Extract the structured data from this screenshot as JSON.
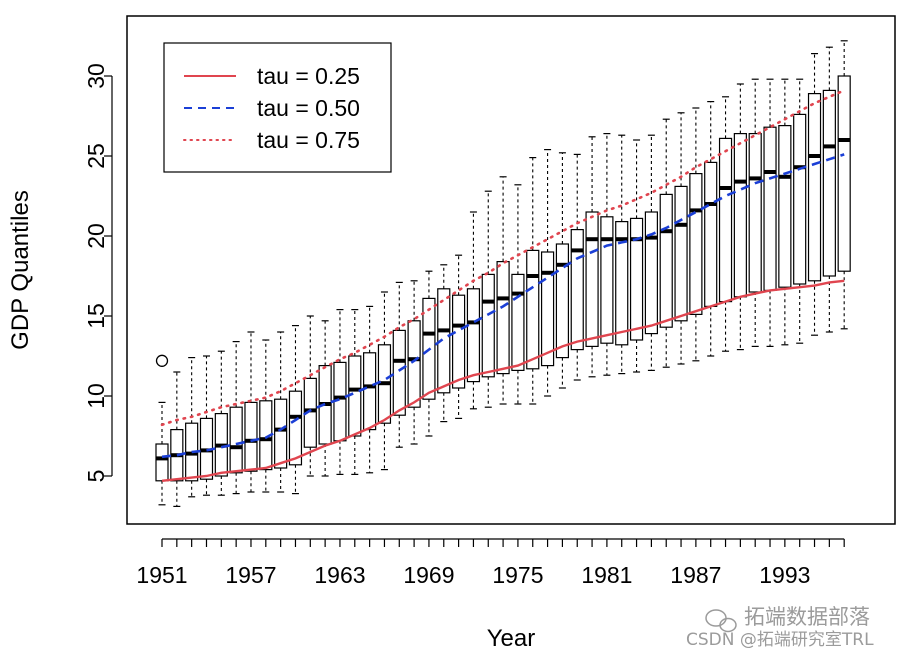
{
  "chart_data": {
    "type": "boxplot",
    "xlabel": "Year",
    "ylabel": "GDP Quantiles",
    "ylim": [
      2,
      33
    ],
    "yticks": [
      5,
      10,
      15,
      20,
      25,
      30
    ],
    "xtick_labels": [
      "1951",
      "1957",
      "1963",
      "1969",
      "1975",
      "1981",
      "1987",
      "1993"
    ],
    "years": [
      1951,
      1952,
      1953,
      1954,
      1955,
      1956,
      1957,
      1958,
      1959,
      1960,
      1961,
      1962,
      1963,
      1964,
      1965,
      1966,
      1967,
      1968,
      1969,
      1970,
      1971,
      1972,
      1973,
      1974,
      1975,
      1976,
      1977,
      1978,
      1979,
      1980,
      1981,
      1982,
      1983,
      1984,
      1985,
      1986,
      1987,
      1988,
      1989,
      1990,
      1991,
      1992,
      1993,
      1994,
      1995,
      1996,
      1997
    ],
    "boxes": {
      "wlo": [
        3.2,
        3.1,
        3.7,
        3.8,
        3.8,
        3.9,
        4.0,
        4.0,
        4.0,
        3.9,
        5.0,
        5.0,
        5.1,
        5.1,
        5.2,
        5.4,
        6.8,
        7.0,
        7.5,
        8.4,
        8.6,
        9.2,
        9.3,
        9.5,
        9.5,
        9.5,
        10.0,
        10.5,
        11.0,
        11.2,
        11.3,
        11.4,
        11.5,
        11.6,
        11.8,
        12.0,
        12.2,
        12.5,
        12.8,
        12.9,
        13.1,
        13.1,
        13.2,
        13.3,
        13.8,
        14.0,
        14.2
      ],
      "q1": [
        4.7,
        4.7,
        4.7,
        4.8,
        5.0,
        5.2,
        5.3,
        5.4,
        5.5,
        5.7,
        6.8,
        7.0,
        7.2,
        7.5,
        7.9,
        8.3,
        8.8,
        9.3,
        9.8,
        10.2,
        10.5,
        10.9,
        11.2,
        11.4,
        11.6,
        11.7,
        11.9,
        12.4,
        12.9,
        13.1,
        13.3,
        13.2,
        13.5,
        13.9,
        14.3,
        14.7,
        15.1,
        15.6,
        15.9,
        16.2,
        16.5,
        16.6,
        16.8,
        17.0,
        17.2,
        17.5,
        17.8
      ],
      "med": [
        6.1,
        6.3,
        6.4,
        6.6,
        6.9,
        6.8,
        7.2,
        7.3,
        7.9,
        8.7,
        9.1,
        9.5,
        9.9,
        10.4,
        10.6,
        10.8,
        12.2,
        12.3,
        13.9,
        14.1,
        14.4,
        14.6,
        15.9,
        16.1,
        16.4,
        17.5,
        17.7,
        18.2,
        19.1,
        19.8,
        19.8,
        19.8,
        19.8,
        19.9,
        20.3,
        20.7,
        21.6,
        22.0,
        23.0,
        23.4,
        23.6,
        24.0,
        23.7,
        24.3,
        25.0,
        25.6,
        26.0
      ],
      "q3": [
        7.0,
        7.9,
        8.3,
        8.6,
        8.9,
        9.3,
        9.6,
        9.7,
        9.8,
        10.3,
        11.1,
        11.9,
        12.1,
        12.5,
        12.7,
        13.2,
        14.1,
        14.7,
        16.1,
        16.7,
        16.3,
        16.7,
        17.6,
        18.4,
        17.6,
        19.1,
        19.0,
        19.5,
        20.4,
        21.5,
        21.2,
        20.9,
        21.1,
        21.5,
        22.6,
        23.1,
        23.9,
        24.6,
        26.1,
        26.4,
        26.4,
        26.8,
        26.9,
        27.6,
        28.9,
        29.1,
        30.0
      ],
      "whi": [
        9.6,
        11.5,
        12.4,
        12.5,
        12.8,
        13.4,
        14.0,
        13.5,
        14.0,
        14.4,
        15.0,
        14.7,
        15.4,
        15.4,
        15.6,
        16.5,
        17.1,
        17.2,
        17.8,
        18.2,
        18.8,
        21.5,
        22.8,
        23.7,
        23.2,
        24.9,
        25.4,
        25.2,
        25.1,
        26.2,
        26.4,
        26.3,
        26.0,
        26.3,
        27.3,
        27.7,
        28.0,
        28.4,
        28.7,
        29.5,
        29.8,
        29.8,
        29.8,
        29.8,
        31.4,
        31.8,
        32.2
      ],
      "outliers": [
        [
          1951,
          12.2
        ]
      ]
    },
    "series": [
      {
        "name": "tau = 0.25",
        "color": "#e0454f",
        "style": "solid",
        "values": [
          4.7,
          4.8,
          4.9,
          5.0,
          5.2,
          5.3,
          5.4,
          5.5,
          5.8,
          6.1,
          6.5,
          6.9,
          7.2,
          7.6,
          8.0,
          8.5,
          9.1,
          9.6,
          10.2,
          10.6,
          11.0,
          11.3,
          11.5,
          11.7,
          11.9,
          12.3,
          12.7,
          13.1,
          13.4,
          13.6,
          13.8,
          14.0,
          14.2,
          14.4,
          14.7,
          15.0,
          15.3,
          15.6,
          15.9,
          16.2,
          16.4,
          16.6,
          16.7,
          16.8,
          16.9,
          17.1,
          17.2
        ]
      },
      {
        "name": "tau = 0.50",
        "color": "#1b3fd6",
        "style": "dashed",
        "values": [
          6.2,
          6.3,
          6.5,
          6.6,
          6.8,
          7.0,
          7.2,
          7.4,
          7.9,
          8.5,
          9.1,
          9.5,
          9.8,
          10.2,
          10.6,
          11.0,
          11.6,
          12.2,
          12.9,
          13.6,
          14.1,
          14.6,
          15.1,
          15.6,
          16.2,
          16.8,
          17.4,
          18.0,
          18.6,
          19.0,
          19.4,
          19.6,
          19.8,
          20.1,
          20.5,
          21.0,
          21.5,
          22.0,
          22.5,
          22.9,
          23.3,
          23.6,
          23.9,
          24.2,
          24.5,
          24.8,
          25.1
        ]
      },
      {
        "name": "tau = 0.75",
        "color": "#e0454f",
        "style": "dotted",
        "values": [
          8.2,
          8.5,
          8.7,
          9.0,
          9.3,
          9.5,
          9.7,
          9.9,
          10.3,
          10.8,
          11.3,
          11.8,
          12.3,
          12.7,
          13.2,
          13.7,
          14.3,
          14.8,
          15.4,
          16.0,
          16.6,
          17.2,
          17.7,
          18.3,
          18.8,
          19.3,
          19.8,
          20.3,
          20.8,
          21.2,
          21.6,
          21.9,
          22.3,
          22.7,
          23.2,
          23.7,
          24.3,
          24.8,
          25.3,
          25.8,
          26.3,
          26.8,
          27.3,
          27.8,
          28.3,
          28.7,
          29.1
        ]
      }
    ],
    "legend": {
      "position": "top-left"
    }
  },
  "watermark": {
    "line1": "拓端数据部落",
    "line2": "CSDN @拓端研究室TRL"
  }
}
